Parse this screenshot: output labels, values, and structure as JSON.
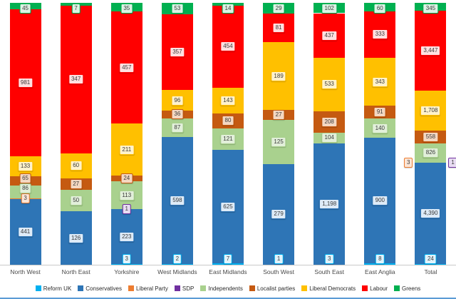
{
  "chart_data": {
    "type": "bar",
    "variant": "stacked-100-percent-column",
    "title": "",
    "legend_position": "bottom",
    "grid": false,
    "y_axis_shown": false,
    "categories": [
      "North West",
      "North East",
      "Yorkshire",
      "West Midlands",
      "East Midlands",
      "South West",
      "South East",
      "East Anglia",
      "Total"
    ],
    "series": [
      {
        "name": "Reform UK",
        "color": "#00B0F0",
        "light": "#E1F3FC",
        "values": [
          0,
          0,
          3,
          2,
          7,
          1,
          3,
          8,
          24
        ]
      },
      {
        "name": "Conservatives",
        "color": "#2E75B6",
        "light": "#DEEBF7",
        "values": [
          441,
          126,
          223,
          598,
          625,
          279,
          1198,
          900,
          4390
        ]
      },
      {
        "name": "Liberal Party",
        "color": "#ED7D31",
        "light": "#FBE5D6",
        "values": [
          3,
          0,
          0,
          0,
          0,
          0,
          0,
          0,
          3
        ]
      },
      {
        "name": "SDP",
        "color": "#7030A0",
        "light": "#E8DCF2",
        "values": [
          0,
          0,
          1,
          0,
          0,
          0,
          0,
          0,
          1
        ]
      },
      {
        "name": "Independents",
        "color": "#A9D18E",
        "light": "#E2EFDA",
        "values": [
          86,
          50,
          113,
          87,
          121,
          125,
          104,
          140,
          826
        ]
      },
      {
        "name": "Localist parties",
        "color": "#C55A11",
        "light": "#F4D8C2",
        "values": [
          65,
          27,
          24,
          36,
          80,
          27,
          208,
          91,
          558
        ]
      },
      {
        "name": "Liberal Democrats",
        "color": "#FFC000",
        "light": "#FFF2CC",
        "values": [
          133,
          60,
          211,
          96,
          143,
          189,
          533,
          343,
          1708
        ]
      },
      {
        "name": "Labour",
        "color": "#FF0000",
        "light": "#FFE0E0",
        "values": [
          981,
          347,
          457,
          357,
          454,
          81,
          437,
          333,
          3447
        ]
      },
      {
        "name": "Greens",
        "color": "#00B050",
        "light": "#DCF2E4",
        "values": [
          45,
          7,
          35,
          53,
          14,
          29,
          102,
          60,
          345
        ]
      }
    ]
  }
}
